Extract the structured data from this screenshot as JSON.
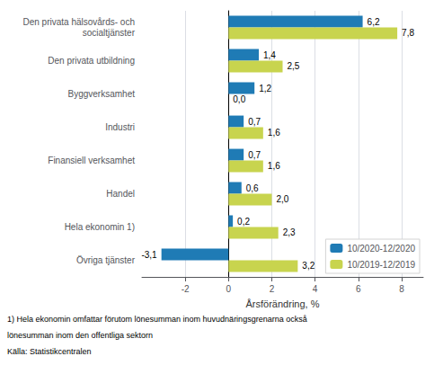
{
  "chart_data": {
    "type": "bar",
    "orientation": "horizontal",
    "categories": [
      "Den privata hälsovårds- och\nsocialtjänster",
      "Den privata utbildning",
      "Byggverksamhet",
      "Industri",
      "Finansiell verksamhet",
      "Handel",
      "Hela ekonomin 1)",
      "Övriga tjänster"
    ],
    "series": [
      {
        "name": "10/2020-12/2020",
        "color": "#1f7bb5",
        "values": [
          6.2,
          1.4,
          1.2,
          0.7,
          0.7,
          0.6,
          0.2,
          -3.1
        ],
        "value_labels": [
          "6,2",
          "1,4",
          "1,2",
          "0,7",
          "0,7",
          "0,6",
          "0,2",
          "-3,1"
        ]
      },
      {
        "name": "10/2019-12/2019",
        "color": "#c8d44e",
        "values": [
          7.8,
          2.5,
          0.0,
          1.6,
          1.6,
          2.0,
          2.3,
          3.2
        ],
        "value_labels": [
          "7,8",
          "2,5",
          "0,0",
          "1,6",
          "1,6",
          "2,0",
          "2,3",
          "3,2"
        ]
      }
    ],
    "xlabel": "Årsförändring, %",
    "xlim": [
      -4,
      9
    ],
    "xticks": [
      -2,
      0,
      2,
      4,
      6,
      8
    ],
    "grid": true,
    "legend": "lower right",
    "data_labels": true,
    "annotations": [
      "1) Hela ekonomin omfattar förutom lönesumman inom huvudnäringsgrenarna också",
      "lönesumman inom den offentliga sektorn",
      "Källa: Statistikcentralen"
    ]
  }
}
